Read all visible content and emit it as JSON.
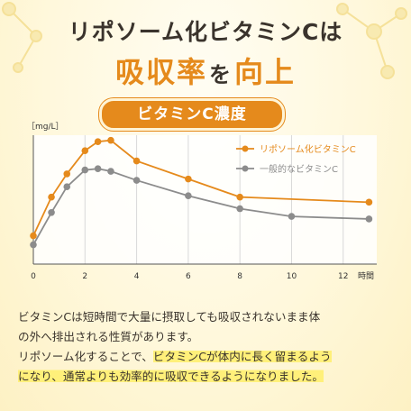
{
  "headline": {
    "line1": "リポソーム化ビタミンCは",
    "line2_part1": "吸収率",
    "line2_part2": "を",
    "line2_part3": "向上"
  },
  "banner": {
    "label": "ビタミンC濃度"
  },
  "colors": {
    "accent": "#e58a1c",
    "gray": "#8c8c8c",
    "highlight": "#fff07a"
  },
  "chart_data": {
    "type": "line",
    "ylabel": "［mg/L］",
    "xlabel": "時間",
    "xticks": [
      0,
      2,
      4,
      6,
      8,
      10,
      12
    ],
    "xlim": [
      0,
      13.3
    ],
    "ylim": [
      0,
      100
    ],
    "grid": "vertical",
    "legend_position": "top-right",
    "series": [
      {
        "name": "リポソーム化ビタミンC",
        "color": "#e58a1c",
        "x": [
          0,
          0.7,
          1.3,
          2,
          2.5,
          3,
          4,
          6,
          8,
          13
        ],
        "y": [
          22,
          52,
          70,
          88,
          95,
          96,
          80,
          66,
          52,
          48
        ]
      },
      {
        "name": "一般的なビタミンC",
        "color": "#8c8c8c",
        "x": [
          0,
          0.7,
          1.3,
          2,
          2.5,
          3,
          4,
          6,
          8,
          10,
          13
        ],
        "y": [
          15,
          40,
          60,
          73,
          74,
          72,
          65,
          53,
          43,
          37,
          35
        ]
      }
    ]
  },
  "body": {
    "line1": "ビタミンCは短時間で大量に摂取しても吸収されないまま体",
    "line2": "の外へ排出される性質があります。",
    "line3_plain": "リポソーム化することで、",
    "line3_highlight": "ビタミンCが体内に長く留まるよう",
    "line4_highlight": "になり、通常よりも効率的に吸収できるようになりました。"
  }
}
